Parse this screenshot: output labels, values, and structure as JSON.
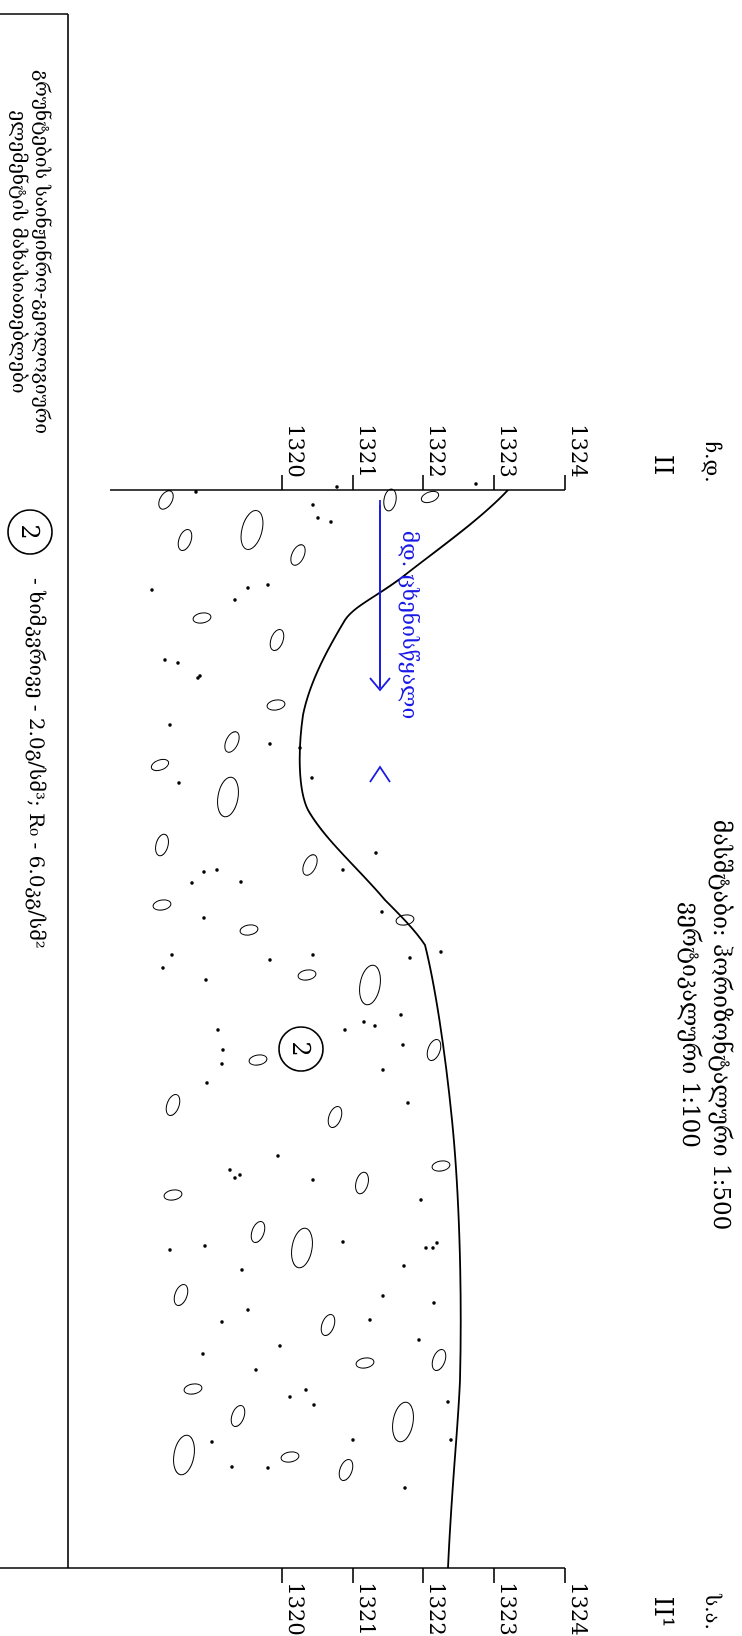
{
  "title": {
    "line1": "მასშტაბი: ჰორიზონტალური 1:500",
    "line2": "ვერტიკალური 1:100"
  },
  "corners": {
    "left": "ჩ.დ.",
    "right": "ს.ა."
  },
  "section": {
    "start": "II",
    "end": "II¹"
  },
  "elevation_ticks": [
    "1324",
    "1323",
    "1322",
    "1321",
    "1320"
  ],
  "soil_label": {
    "line1": "გრუნტების საინჟინრო-გეოლოგიური",
    "line2": "ელემენტის მახასიათებლები"
  },
  "river": {
    "label": "მდ. ცხენისწყალი"
  },
  "layer": {
    "number": "2",
    "description": "- ხიმკვრივე - 2.0გ/სმ³; R₀ - 6.0კგ/სმ²"
  }
}
